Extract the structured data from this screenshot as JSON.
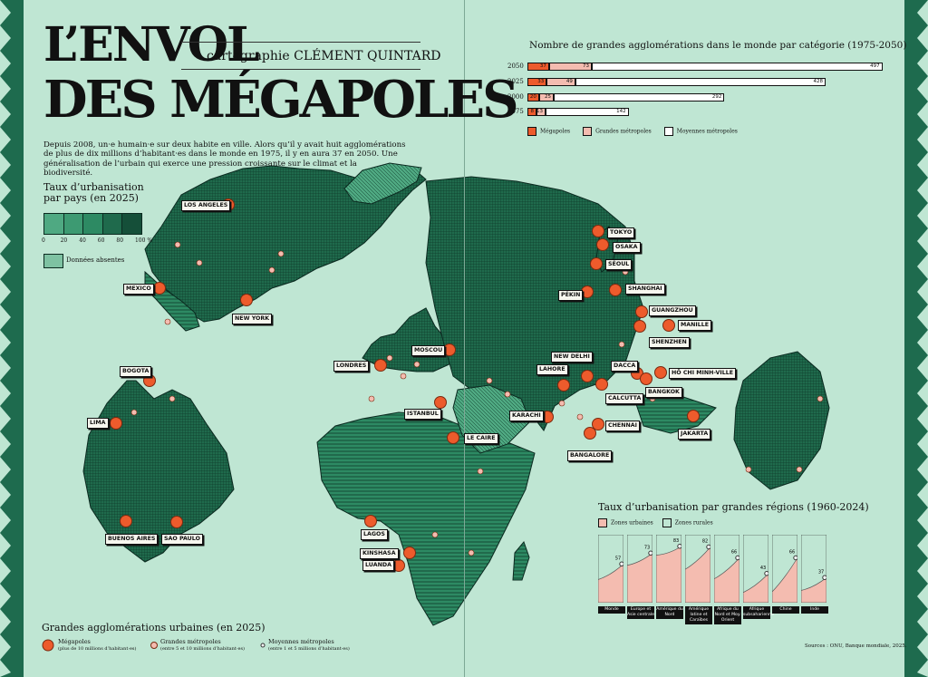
{
  "title_line1": "L’ENVOL",
  "title_line2": "DES MÉGAPOLES",
  "credit": "cartographie CLÉMENT QUINTARD",
  "intro": "Depuis 2008, un·e humain·e sur deux habite en ville. Alors qu’il y avait huit agglomérations de plus de dix millions d’habitant·es dans le monde en 1975, il y en aura 37 en 2050. Une généralisation de l’urbain qui exerce une pression croissante sur le climat et la biodiversité.",
  "urban_rate_legend": {
    "title": "Taux d’urbanisation par pays (en 2025)",
    "ticks": [
      "0",
      "20",
      "40",
      "60",
      "80",
      "100 %"
    ],
    "absent": "Données absentes"
  },
  "cities": [
    "LOS ANGELES",
    "MEXICO",
    "NEW YORK",
    "BOGOTA",
    "LIMA",
    "BUENOS AIRES",
    "SAO PAULO",
    "LONDRES",
    "MOSCOU",
    "ISTANBUL",
    "LE CAIRE",
    "LAGOS",
    "KINSHASA",
    "LUANDA",
    "KARACHI",
    "LAHORE",
    "NEW DELHI",
    "DACCA",
    "CALCUTTA",
    "BANGALORE",
    "CHENNAI",
    "PÉKIN",
    "SHANGHAI",
    "SÉOUL",
    "TOKYO",
    "OSAKA",
    "GUANGZHOU",
    "SHENZHEN",
    "MANILLE",
    "HÔ CHI MINH-VILLE",
    "BANGKOK",
    "JAKARTA"
  ],
  "agglo_chart": {
    "title": "Nombre de grandes agglomérations dans le monde par catégorie (1975-2050)",
    "rows": [
      {
        "year": "2050",
        "megapoles": 37,
        "grandes": 73,
        "moyennes": 497
      },
      {
        "year": "2025",
        "megapoles": 33,
        "grandes": 49,
        "moyennes": 428
      },
      {
        "year": "2000",
        "megapoles": 20,
        "grandes": 25,
        "moyennes": 292
      },
      {
        "year": "1975",
        "megapoles": 8,
        "grandes": 13,
        "moyennes": 142
      }
    ],
    "legend": [
      "Mégapoles",
      "Grandes métropoles",
      "Moyennes métropoles"
    ]
  },
  "region_chart": {
    "title": "Taux d’urbanisation par grandes régions (1960-2024)",
    "legend": [
      "Zones urbaines",
      "Zones rurales"
    ],
    "regions": [
      {
        "name": "Monde",
        "start": 34,
        "end": 57
      },
      {
        "name": "Europe et Asie centrale",
        "start": 55,
        "end": 73
      },
      {
        "name": "Amérique du Nord",
        "start": 70,
        "end": 83
      },
      {
        "name": "Amérique latine et Caraïbes",
        "start": 49,
        "end": 82
      },
      {
        "name": "Afrique du Nord et Moy. Orient",
        "start": 35,
        "end": 66
      },
      {
        "name": "Afrique subsaharienne",
        "start": 15,
        "end": 43
      },
      {
        "name": "Chine",
        "start": 16,
        "end": 66
      },
      {
        "name": "Inde",
        "start": 18,
        "end": 37
      }
    ]
  },
  "agglo_legend": {
    "title": "Grandes agglomérations urbaines (en 2025)",
    "megapoles": "Mégapoles",
    "megapoles_sub": "(plus de 10 millions d’habitant·es)",
    "grandes": "Grandes métropoles",
    "grandes_sub": "(entre 5 et 10 millions d’habitant·es)",
    "moyennes": "Moyennes métropoles",
    "moyennes_sub": "(entre 1 et 5 millions d’habitant·es)"
  },
  "source": "Sources : ONU, Banque mondiale, 2025."
}
